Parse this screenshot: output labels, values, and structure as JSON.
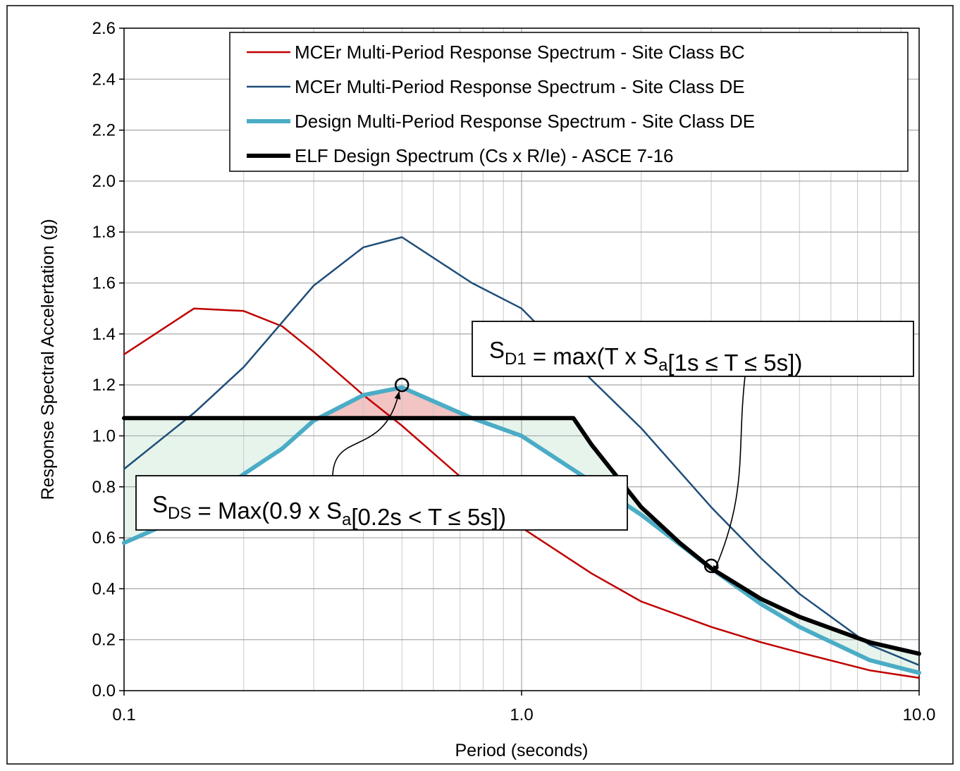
{
  "chart_data": {
    "type": "line",
    "xlabel": "Period (seconds)",
    "ylabel": "Response Spectral Accelertation (g)",
    "xscale": "log",
    "xlim": [
      0.1,
      10.0
    ],
    "ylim": [
      0.0,
      2.6
    ],
    "grid": true,
    "x_ticks": [
      "0.1",
      "1.0",
      "10.0"
    ],
    "y_ticks": [
      "0.0",
      "0.2",
      "0.4",
      "0.6",
      "0.8",
      "1.0",
      "1.2",
      "1.4",
      "1.6",
      "1.8",
      "2.0",
      "2.2",
      "2.4",
      "2.6"
    ],
    "legend_position": "top-right",
    "series": [
      {
        "name": "MCEr Multi-Period Response Spectrum - Site Class BC",
        "color": "#c00000",
        "x": [
          0.1,
          0.15,
          0.2,
          0.25,
          0.3,
          0.4,
          0.5,
          0.75,
          1.0,
          1.5,
          2.0,
          3.0,
          4.0,
          5.0,
          7.5,
          10.0
        ],
        "y": [
          1.32,
          1.5,
          1.49,
          1.43,
          1.33,
          1.16,
          1.04,
          0.8,
          0.64,
          0.46,
          0.35,
          0.25,
          0.19,
          0.15,
          0.08,
          0.05
        ]
      },
      {
        "name": "MCEr Multi-Period Response Spectrum - Site Class DE",
        "color": "#1f4e79",
        "x": [
          0.1,
          0.15,
          0.2,
          0.3,
          0.4,
          0.5,
          0.75,
          1.0,
          1.5,
          2.0,
          3.0,
          4.0,
          5.0,
          7.5,
          10.0
        ],
        "y": [
          0.87,
          1.09,
          1.27,
          1.59,
          1.74,
          1.78,
          1.6,
          1.5,
          1.22,
          1.03,
          0.72,
          0.52,
          0.38,
          0.18,
          0.1
        ]
      },
      {
        "name": "Design Multi-Period Response Spectrum - Site Class DE",
        "color": "#4bacc6",
        "x": [
          0.1,
          0.15,
          0.2,
          0.25,
          0.3,
          0.4,
          0.5,
          0.75,
          1.0,
          1.5,
          2.0,
          3.0,
          4.0,
          5.0,
          7.5,
          10.0
        ],
        "y": [
          0.58,
          0.7,
          0.85,
          0.95,
          1.06,
          1.16,
          1.19,
          1.07,
          1.0,
          0.82,
          0.69,
          0.48,
          0.34,
          0.25,
          0.12,
          0.07
        ]
      },
      {
        "name": "ELF Design Spectrum (Cs x R/Ie) - ASCE 7-16",
        "color": "#000000",
        "x": [
          0.1,
          1.35,
          1.5,
          2.0,
          2.5,
          3.0,
          4.0,
          5.0,
          7.5,
          10.0
        ],
        "y": [
          1.07,
          1.07,
          0.965,
          0.72,
          0.58,
          0.48,
          0.36,
          0.29,
          0.19,
          0.145
        ]
      }
    ],
    "annotations": [
      {
        "id": "sds",
        "parts": [
          {
            "t": "S"
          },
          {
            "t": "DS",
            "sub": true
          },
          {
            "t": " = Max(0.9 x S"
          },
          {
            "t": "a",
            "sub": true
          },
          {
            "t": "[0.2s < T ≤  5s])"
          }
        ],
        "points_to": [
          0.5,
          1.2
        ]
      },
      {
        "id": "sd1",
        "parts": [
          {
            "t": "S"
          },
          {
            "t": "D1",
            "sub": true
          },
          {
            "t": " = max(T x S"
          },
          {
            "t": "a",
            "sub": true
          },
          {
            "t": "[1s ≤ T ≤ 5s])"
          }
        ],
        "points_to": [
          3.0,
          0.49
        ]
      }
    ]
  }
}
